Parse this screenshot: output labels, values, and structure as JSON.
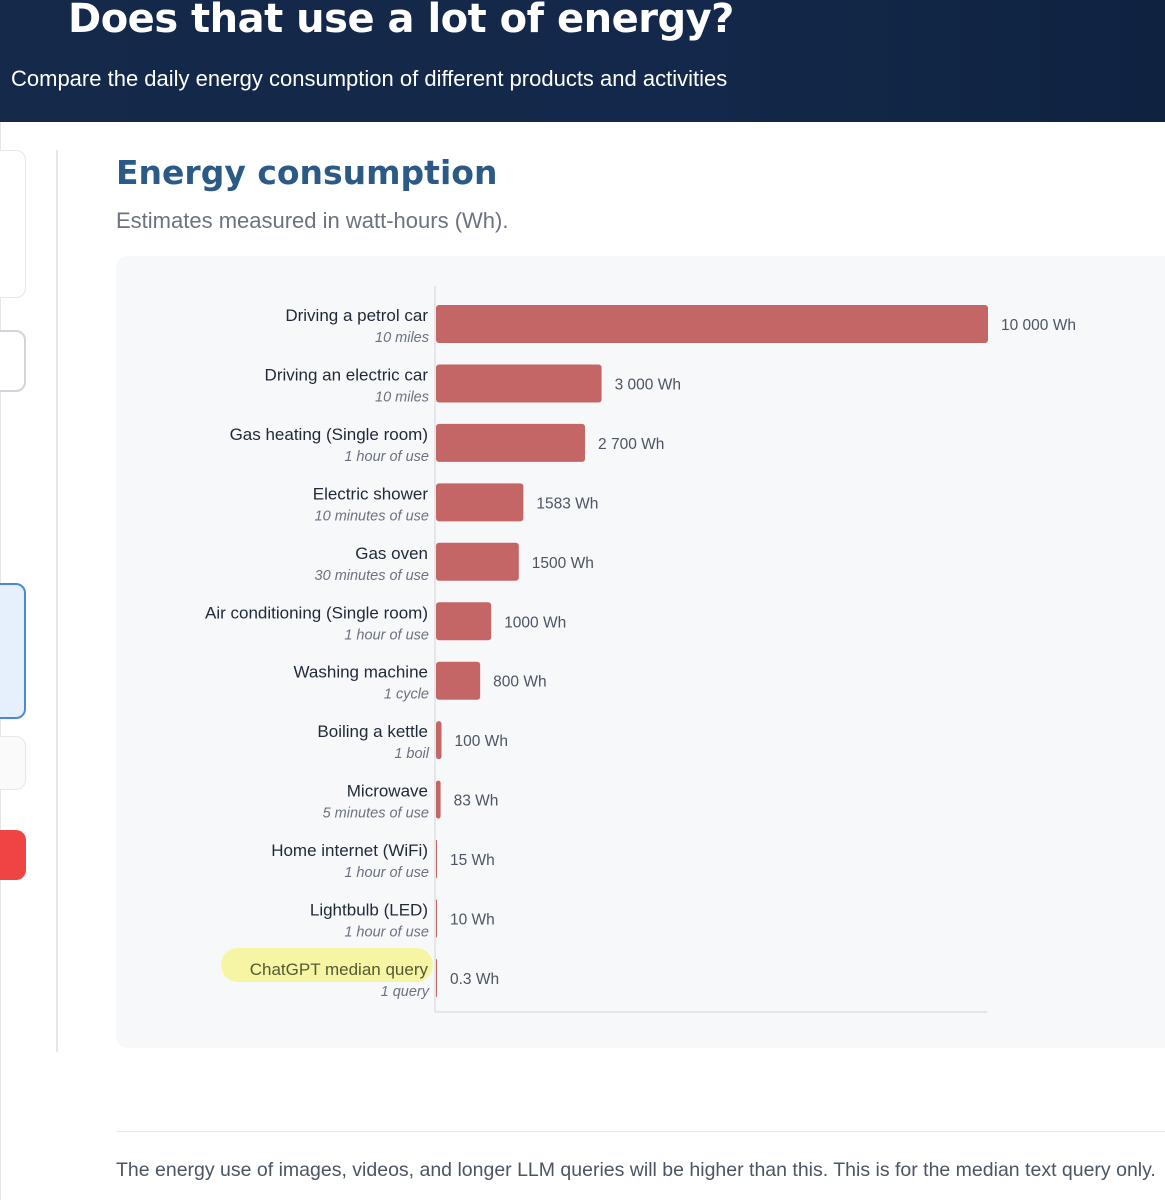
{
  "header": {
    "title": "Does that use a lot of energy?",
    "subtitle": "Compare the daily energy consumption of different products and activities"
  },
  "colors": {
    "bar": "#c56666",
    "highlight": "#f6f5a3",
    "title": "#2c5a86",
    "header_bg": "#13284a"
  },
  "chart_data": {
    "type": "bar",
    "orientation": "horizontal",
    "title": "Energy consumption",
    "subtitle": "Estimates measured in watt-hours (Wh).",
    "unit": "Wh",
    "xlim": [
      0,
      10000
    ],
    "categories": [
      {
        "label": "Driving a petrol car",
        "sublabel": "10 miles",
        "value": 10000,
        "value_label": "10 000 Wh",
        "highlight": false
      },
      {
        "label": "Driving  an electric car",
        "sublabel": "10 miles",
        "value": 3000,
        "value_label": "3 000 Wh",
        "highlight": false
      },
      {
        "label": "Gas heating (Single room)",
        "sublabel": "1 hour of use",
        "value": 2700,
        "value_label": "2 700 Wh",
        "highlight": false
      },
      {
        "label": "Electric shower",
        "sublabel": "10 minutes of use",
        "value": 1583,
        "value_label": "1583 Wh",
        "highlight": false
      },
      {
        "label": "Gas oven",
        "sublabel": "30 minutes of use",
        "value": 1500,
        "value_label": "1500 Wh",
        "highlight": false
      },
      {
        "label": "Air conditioning (Single room)",
        "sublabel": "1 hour of use",
        "value": 1000,
        "value_label": "1000 Wh",
        "highlight": false
      },
      {
        "label": "Washing machine",
        "sublabel": "1 cycle",
        "value": 800,
        "value_label": "800 Wh",
        "highlight": false
      },
      {
        "label": "Boiling a kettle",
        "sublabel": "1 boil",
        "value": 100,
        "value_label": "100 Wh",
        "highlight": false
      },
      {
        "label": "Microwave",
        "sublabel": "5 minutes of use",
        "value": 83,
        "value_label": "83 Wh",
        "highlight": false
      },
      {
        "label": "Home internet (WiFi)",
        "sublabel": "1 hour of use",
        "value": 15,
        "value_label": "15 Wh",
        "highlight": false
      },
      {
        "label": "Lightbulb (LED)",
        "sublabel": "1 hour of use",
        "value": 10,
        "value_label": "10 Wh",
        "highlight": false
      },
      {
        "label": "ChatGPT median query",
        "sublabel": "1 query",
        "value": 0.3,
        "value_label": "0.3 Wh",
        "highlight": true
      }
    ]
  },
  "footnote": "The energy use of images, videos, and longer LLM queries will be higher than this. This is for the median text query only."
}
